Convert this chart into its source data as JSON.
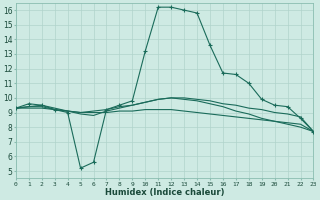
{
  "background_color": "#ceeae3",
  "grid_color": "#b0d4cc",
  "line_color": "#1a6b5a",
  "series1_x": [
    0,
    1,
    2,
    3,
    4,
    5,
    6,
    7,
    8,
    9,
    10,
    11,
    12,
    13,
    14,
    15,
    16,
    17,
    18,
    19,
    20,
    21,
    22,
    23
  ],
  "series1_y": [
    9.3,
    9.6,
    9.5,
    9.2,
    9.0,
    5.2,
    5.6,
    9.2,
    9.5,
    9.8,
    13.2,
    16.2,
    16.2,
    16.0,
    15.8,
    13.6,
    11.7,
    11.6,
    11.0,
    9.9,
    9.5,
    9.4,
    8.6,
    7.7
  ],
  "series2_x": [
    0,
    1,
    2,
    3,
    4,
    5,
    6,
    7,
    8,
    9,
    10,
    11,
    12,
    13,
    14,
    15,
    16,
    17,
    18,
    19,
    20,
    21,
    22,
    23
  ],
  "series2_y": [
    9.3,
    9.4,
    9.4,
    9.2,
    9.1,
    9.0,
    9.1,
    9.2,
    9.4,
    9.5,
    9.7,
    9.9,
    10.0,
    10.0,
    9.9,
    9.8,
    9.6,
    9.5,
    9.3,
    9.2,
    9.0,
    8.9,
    8.7,
    7.7
  ],
  "series3_x": [
    0,
    1,
    2,
    3,
    4,
    5,
    6,
    7,
    8,
    9,
    10,
    11,
    12,
    13,
    14,
    15,
    16,
    17,
    18,
    19,
    20,
    21,
    22,
    23
  ],
  "series3_y": [
    9.3,
    9.3,
    9.3,
    9.2,
    9.1,
    9.0,
    9.0,
    9.0,
    9.1,
    9.1,
    9.2,
    9.2,
    9.2,
    9.1,
    9.0,
    8.9,
    8.8,
    8.7,
    8.6,
    8.5,
    8.4,
    8.3,
    8.2,
    7.7
  ],
  "series4_x": [
    0,
    1,
    2,
    3,
    4,
    5,
    6,
    7,
    8,
    9,
    10,
    11,
    12,
    13,
    14,
    15,
    16,
    17,
    18,
    19,
    20,
    21,
    22,
    23
  ],
  "series4_y": [
    9.3,
    9.4,
    9.5,
    9.3,
    9.1,
    8.9,
    8.8,
    9.1,
    9.3,
    9.5,
    9.7,
    9.9,
    10.0,
    9.9,
    9.8,
    9.6,
    9.4,
    9.1,
    8.9,
    8.6,
    8.4,
    8.2,
    8.0,
    7.7
  ],
  "xlabel": "Humidex (Indice chaleur)",
  "xlim": [
    0,
    23
  ],
  "ylim": [
    4.5,
    16.5
  ],
  "xtick_labels": [
    "0",
    "1",
    "2",
    "3",
    "4",
    "5",
    "6",
    "7",
    "8",
    "9",
    "10",
    "11",
    "12",
    "13",
    "14",
    "15",
    "16",
    "17",
    "18",
    "19",
    "20",
    "21",
    "22",
    "23"
  ],
  "yticks": [
    5,
    6,
    7,
    8,
    9,
    10,
    11,
    12,
    13,
    14,
    15,
    16
  ]
}
